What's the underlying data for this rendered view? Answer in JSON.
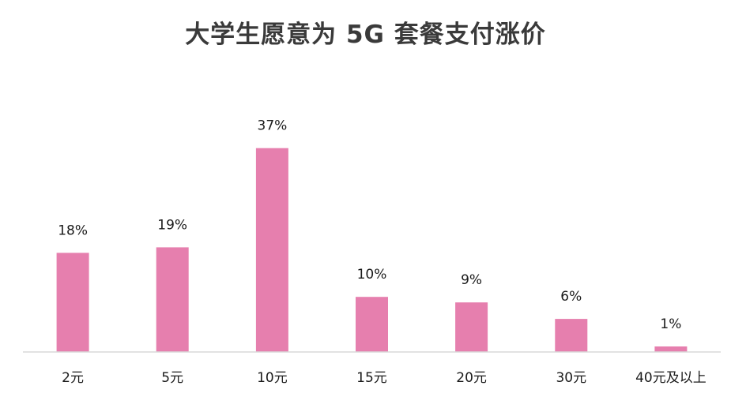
{
  "chart_data": {
    "type": "bar",
    "title": "大学生愿意为 5G 套餐支付涨价",
    "categories": [
      "2元",
      "5元",
      "10元",
      "15元",
      "20元",
      "30元",
      "40元及以上"
    ],
    "values": [
      18,
      19,
      37,
      10,
      9,
      6,
      1
    ],
    "data_labels": [
      "18%",
      "19%",
      "37%",
      "10%",
      "9%",
      "6%",
      "1%"
    ],
    "unit": "%",
    "bar_color": "#e67fae",
    "axis_color": "#d9d9d9",
    "grid": false,
    "legend": "none"
  }
}
